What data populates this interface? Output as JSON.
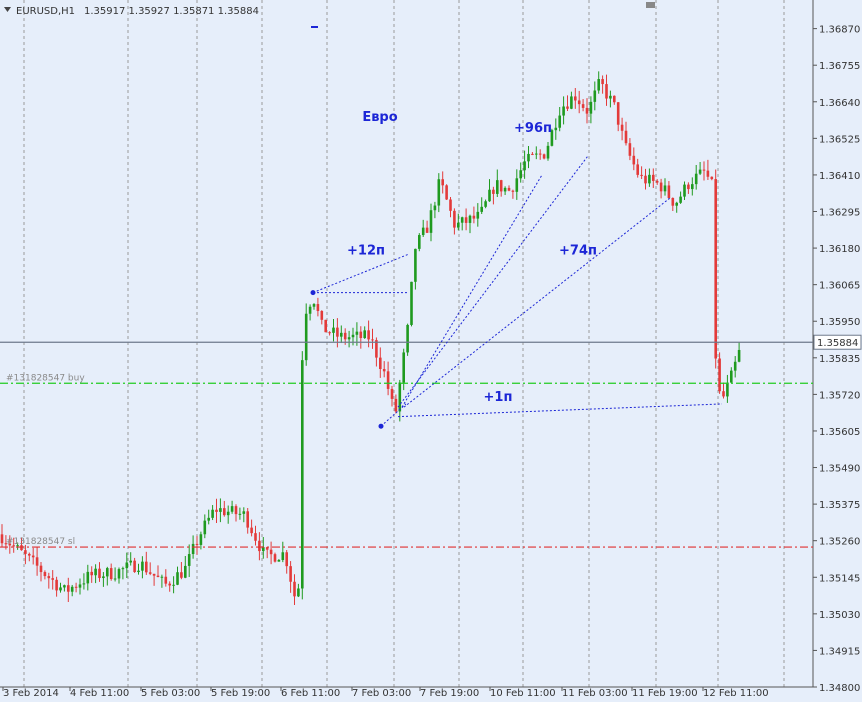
{
  "header": {
    "symbol": "EURUSD,H1",
    "ohlc": "1.35917 1.35927 1.35871 1.35884"
  },
  "chart_data": {
    "type": "candlestick",
    "ylim": [
      1.348,
      1.3696
    ],
    "grid": true,
    "y_ticks": [
      "1.36870",
      "1.36755",
      "1.36640",
      "1.36525",
      "1.36410",
      "1.36295",
      "1.36180",
      "1.36065",
      "1.35950",
      "1.35835",
      "1.35720",
      "1.35605",
      "1.35490",
      "1.35375",
      "1.35260",
      "1.35145",
      "1.35030",
      "1.34915",
      "1.34800"
    ],
    "x_ticks": [
      "3 Feb 2014",
      "4 Feb 11:00",
      "5 Feb 03:00",
      "5 Feb 19:00",
      "6 Feb 11:00",
      "7 Feb 03:00",
      "7 Feb 19:00",
      "10 Feb 11:00",
      "11 Feb 03:00",
      "11 Feb 19:00",
      "12 Feb 11:00"
    ],
    "current_price": {
      "value": 1.35884,
      "label": "1.35884"
    },
    "levels": [
      {
        "name": "#131828547 buy",
        "value": 1.35755,
        "color": "#22cc22"
      },
      {
        "name": "#131828547 sl",
        "value": 1.3524,
        "color": "#e03030"
      }
    ],
    "annotations": [
      {
        "text": "Евро",
        "x": 380,
        "y": 1.3658
      },
      {
        "text": "+12п",
        "x": 366,
        "y": 1.3616
      },
      {
        "text": "+96п",
        "x": 533,
        "y": 1.36545
      },
      {
        "text": "+74п",
        "x": 578,
        "y": 1.3616
      },
      {
        "text": "+1п",
        "x": 498,
        "y": 1.357
      }
    ],
    "trade_lines": [
      {
        "from": {
          "x": 313,
          "y": 1.3604
        },
        "to": {
          "x": 408,
          "y": 1.3604
        }
      },
      {
        "from": {
          "x": 313,
          "y": 1.3604
        },
        "to": {
          "x": 408,
          "y": 1.3616
        }
      },
      {
        "from": {
          "x": 381,
          "y": 1.3562
        },
        "to": {
          "x": 406,
          "y": 1.3569
        }
      },
      {
        "from": {
          "x": 398,
          "y": 1.3568
        },
        "to": {
          "x": 588,
          "y": 1.3647
        }
      },
      {
        "from": {
          "x": 402,
          "y": 1.3568
        },
        "to": {
          "x": 542,
          "y": 1.3641
        }
      },
      {
        "from": {
          "x": 404,
          "y": 1.3568
        },
        "to": {
          "x": 671,
          "y": 1.3634
        }
      },
      {
        "from": {
          "x": 398,
          "y": 1.3565
        },
        "to": {
          "x": 722,
          "y": 1.3569
        }
      }
    ],
    "anchors": [
      {
        "x": 0,
        "y": 1.3528
      },
      {
        "x": 40,
        "y": 1.3517
      },
      {
        "x": 65,
        "y": 1.351
      },
      {
        "x": 90,
        "y": 1.3515
      },
      {
        "x": 115,
        "y": 1.3516
      },
      {
        "x": 140,
        "y": 1.3519
      },
      {
        "x": 165,
        "y": 1.3512
      },
      {
        "x": 185,
        "y": 1.3517
      },
      {
        "x": 200,
        "y": 1.3528
      },
      {
        "x": 215,
        "y": 1.3536
      },
      {
        "x": 245,
        "y": 1.3534
      },
      {
        "x": 265,
        "y": 1.3521
      },
      {
        "x": 285,
        "y": 1.3522
      },
      {
        "x": 298,
        "y": 1.3504
      },
      {
        "x": 303,
        "y": 1.3597
      },
      {
        "x": 313,
        "y": 1.3603
      },
      {
        "x": 322,
        "y": 1.3593
      },
      {
        "x": 340,
        "y": 1.359
      },
      {
        "x": 370,
        "y": 1.359
      },
      {
        "x": 385,
        "y": 1.3578
      },
      {
        "x": 395,
        "y": 1.3565
      },
      {
        "x": 408,
        "y": 1.3593
      },
      {
        "x": 415,
        "y": 1.3618
      },
      {
        "x": 428,
        "y": 1.3625
      },
      {
        "x": 440,
        "y": 1.3639
      },
      {
        "x": 455,
        "y": 1.3625
      },
      {
        "x": 480,
        "y": 1.3628
      },
      {
        "x": 495,
        "y": 1.3638
      },
      {
        "x": 510,
        "y": 1.3636
      },
      {
        "x": 525,
        "y": 1.3645
      },
      {
        "x": 545,
        "y": 1.3648
      },
      {
        "x": 560,
        "y": 1.3662
      },
      {
        "x": 575,
        "y": 1.3666
      },
      {
        "x": 588,
        "y": 1.3661
      },
      {
        "x": 600,
        "y": 1.367
      },
      {
        "x": 615,
        "y": 1.3662
      },
      {
        "x": 625,
        "y": 1.365
      },
      {
        "x": 640,
        "y": 1.364
      },
      {
        "x": 660,
        "y": 1.3638
      },
      {
        "x": 675,
        "y": 1.3632
      },
      {
        "x": 690,
        "y": 1.3639
      },
      {
        "x": 705,
        "y": 1.3642
      },
      {
        "x": 714,
        "y": 1.3636
      },
      {
        "x": 716,
        "y": 1.3575
      },
      {
        "x": 722,
        "y": 1.357
      },
      {
        "x": 732,
        "y": 1.3578
      },
      {
        "x": 742,
        "y": 1.3588
      }
    ]
  }
}
